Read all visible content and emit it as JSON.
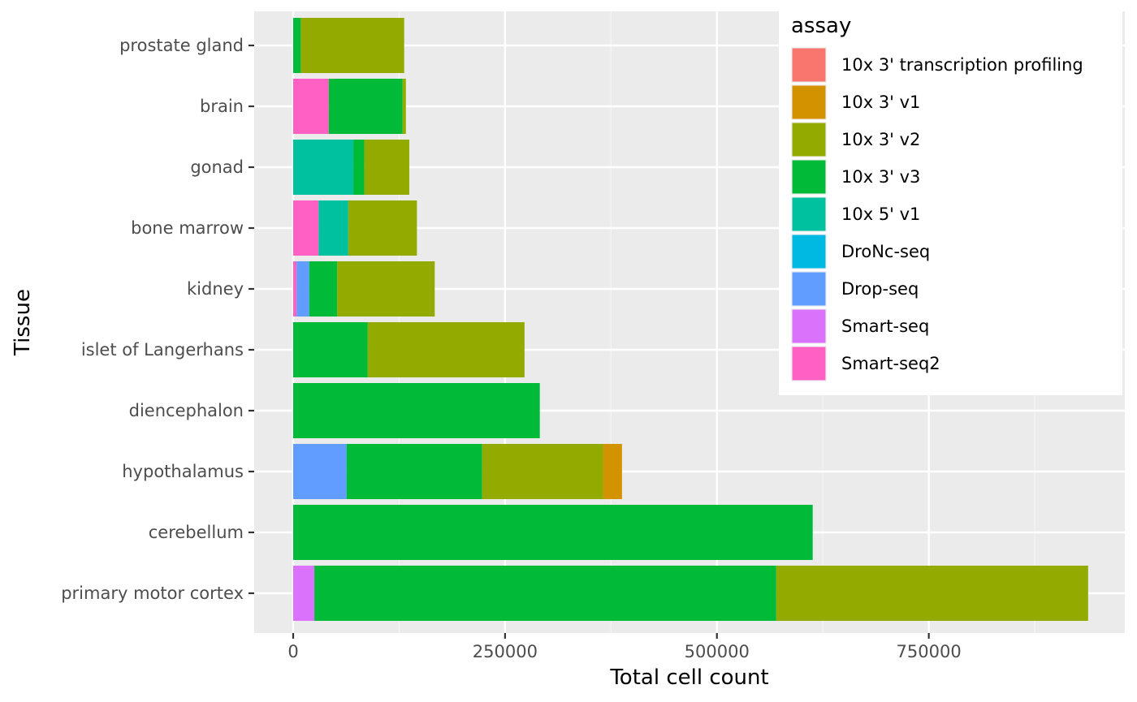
{
  "chart_data": {
    "type": "bar",
    "orientation": "horizontal",
    "stacked": true,
    "xlabel": "Total cell count",
    "ylabel": "Tissue",
    "xlim": [
      -90000,
      1000000
    ],
    "x_ticks": [
      0,
      250000,
      500000,
      750000
    ],
    "x_tick_labels": [
      "0",
      "250000",
      "500000",
      "750000"
    ],
    "grid": true,
    "legend_position": "top-right",
    "legend_title": "assay",
    "categories": [
      "primary motor cortex",
      "cerebellum",
      "hypothalamus",
      "diencephalon",
      "islet of Langerhans",
      "kidney",
      "bone marrow",
      "gonad",
      "brain",
      "prostate gland"
    ],
    "series": [
      {
        "name": "10x 3' transcription profiling",
        "color": "#F8766D",
        "values": [
          0,
          0,
          0,
          0,
          0,
          0,
          0,
          0,
          0,
          0
        ]
      },
      {
        "name": "10x 3' v1",
        "color": "#D39200",
        "values": [
          0,
          0,
          22000,
          0,
          0,
          0,
          0,
          0,
          0,
          0
        ]
      },
      {
        "name": "10x 3' v2",
        "color": "#93AA00",
        "values": [
          368000,
          0,
          143000,
          0,
          185000,
          115000,
          81000,
          53000,
          4000,
          122000
        ]
      },
      {
        "name": "10x 3' v3",
        "color": "#00BA38",
        "values": [
          545000,
          613000,
          160000,
          291000,
          88000,
          33000,
          0,
          13000,
          87000,
          9000
        ]
      },
      {
        "name": "10x 5' v1",
        "color": "#00C19F",
        "values": [
          0,
          0,
          0,
          0,
          0,
          0,
          35000,
          71000,
          0,
          0
        ]
      },
      {
        "name": "DroNc-seq",
        "color": "#00B9E3",
        "values": [
          0,
          0,
          0,
          0,
          0,
          0,
          0,
          0,
          0,
          0
        ]
      },
      {
        "name": "Drop-seq",
        "color": "#619CFF",
        "values": [
          0,
          0,
          63000,
          0,
          0,
          15000,
          0,
          0,
          0,
          0
        ]
      },
      {
        "name": "Smart-seq",
        "color": "#DB72FB",
        "values": [
          25000,
          0,
          0,
          0,
          0,
          0,
          0,
          0,
          0,
          0
        ]
      },
      {
        "name": "Smart-seq2",
        "color": "#FF61C3",
        "values": [
          0,
          0,
          0,
          0,
          0,
          4000,
          30000,
          0,
          42000,
          0
        ]
      }
    ]
  },
  "colors": {
    "panel_background": "#EBEBEB",
    "grid_major": "#FFFFFF",
    "grid_minor": "#F5F5F5"
  }
}
